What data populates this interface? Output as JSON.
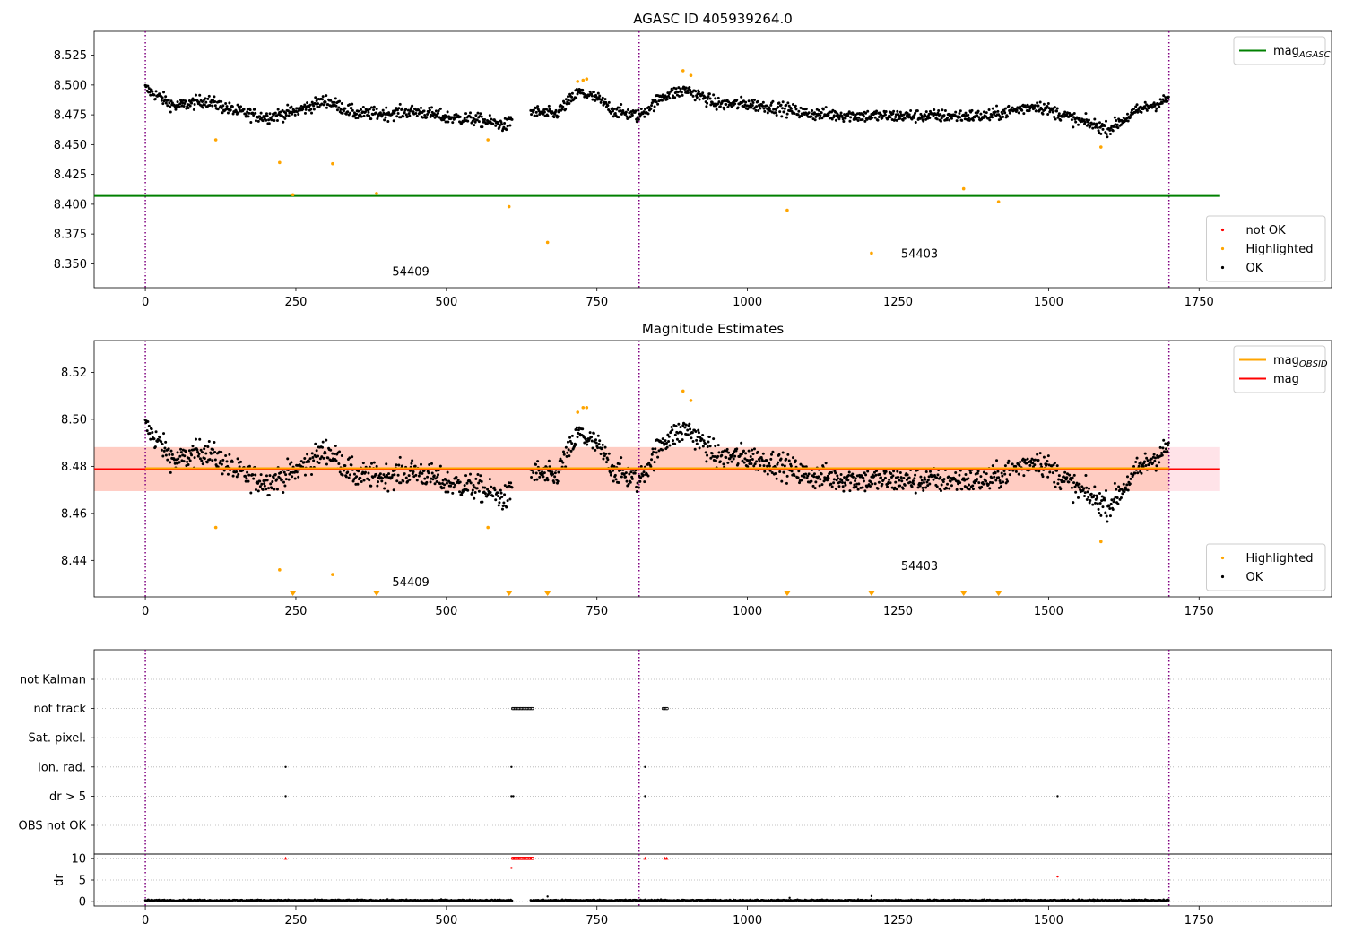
{
  "figure": {
    "title_top": "AGASC ID 405939264.0",
    "title_mid": "Magnitude Estimates"
  },
  "colors": {
    "ok": "#000000",
    "highlighted": "#ffa500",
    "not_ok": "#ff0000",
    "agasc_line": "#008000",
    "obsid_mag": "#ffa500",
    "mag_line": "#ff0000",
    "band_outer": "#ffc0cb",
    "band_inner": "#ffa07a",
    "obsid_boundary": "#800080",
    "grid": "#b0b0b0"
  },
  "chart_data": [
    {
      "type": "scatter",
      "title": "AGASC ID 405939264.0",
      "xlim": [
        -85,
        1970
      ],
      "ylim": [
        8.33,
        8.545
      ],
      "xticks": [
        0,
        250,
        500,
        750,
        1000,
        1250,
        1500,
        1750
      ],
      "yticks": [
        8.35,
        8.375,
        8.4,
        8.425,
        8.45,
        8.475,
        8.5,
        8.525
      ],
      "ytick_decimals": 3,
      "hlines": [
        {
          "name": "mag_AGASC",
          "y": 8.407,
          "x": [
            -85,
            1785
          ],
          "color": "#008000"
        }
      ],
      "vlines": [
        0,
        820,
        1700
      ],
      "annotations": [
        {
          "text": "54409",
          "x": 410,
          "y": 8.34
        },
        {
          "text": "54403",
          "x": 1255,
          "y": 8.355
        }
      ],
      "legends": [
        {
          "loc": "upper right",
          "entries": [
            {
              "label": "mag",
              "sub": "AGASC",
              "kind": "line",
              "color": "#008000"
            }
          ]
        },
        {
          "loc": "lower right",
          "entries": [
            {
              "label": "not OK",
              "kind": "marker",
              "color": "#ff0000"
            },
            {
              "label": "Highlighted",
              "kind": "marker",
              "color": "#ffa500"
            },
            {
              "label": "OK",
              "kind": "marker",
              "color": "#000000"
            }
          ]
        }
      ],
      "series": [
        {
          "name": "OK",
          "segments": [
            {
              "x0": 0,
              "x1": 610,
              "points": [
                [
                  0,
                  8.497
                ],
                [
                  50,
                  8.482
                ],
                [
                  100,
                  8.487
                ],
                [
                  150,
                  8.478
                ],
                [
                  200,
                  8.473
                ],
                [
                  250,
                  8.478
                ],
                [
                  300,
                  8.487
                ],
                [
                  350,
                  8.476
                ],
                [
                  400,
                  8.476
                ],
                [
                  450,
                  8.478
                ],
                [
                  500,
                  8.473
                ],
                [
                  550,
                  8.471
                ],
                [
                  600,
                  8.466
                ],
                [
                  610,
                  8.472
                ]
              ],
              "jitter": 0.007
            },
            {
              "x0": 640,
              "x1": 1700,
              "points": [
                [
                  640,
                  8.478
                ],
                [
                  680,
                  8.475
                ],
                [
                  720,
                  8.494
                ],
                [
                  750,
                  8.489
                ],
                [
                  780,
                  8.478
                ],
                [
                  820,
                  8.474
                ],
                [
                  860,
                  8.491
                ],
                [
                  900,
                  8.496
                ],
                [
                  950,
                  8.484
                ],
                [
                  1000,
                  8.484
                ],
                [
                  1050,
                  8.481
                ],
                [
                  1100,
                  8.476
                ],
                [
                  1200,
                  8.474
                ],
                [
                  1300,
                  8.474
                ],
                [
                  1400,
                  8.474
                ],
                [
                  1480,
                  8.483
                ],
                [
                  1550,
                  8.47
                ],
                [
                  1600,
                  8.463
                ],
                [
                  1650,
                  8.479
                ],
                [
                  1700,
                  8.488
                ]
              ],
              "jitter": 0.007
            }
          ]
        },
        {
          "name": "Highlighted",
          "points": [
            [
              117,
              8.454
            ],
            [
              223,
              8.435
            ],
            [
              245,
              8.408
            ],
            [
              311,
              8.434
            ],
            [
              384,
              8.409
            ],
            [
              569,
              8.454
            ],
            [
              604,
              8.398
            ],
            [
              668,
              8.368
            ],
            [
              718,
              8.503
            ],
            [
              727,
              8.504
            ],
            [
              733,
              8.505
            ],
            [
              893,
              8.512
            ],
            [
              906,
              8.508
            ],
            [
              1066,
              8.395
            ],
            [
              1206,
              8.359
            ],
            [
              1359,
              8.413
            ],
            [
              1417,
              8.402
            ],
            [
              1587,
              8.448
            ]
          ]
        }
      ]
    },
    {
      "type": "scatter",
      "title": "Magnitude Estimates",
      "xlim": [
        -85,
        1970
      ],
      "ylim": [
        8.4245,
        8.5335
      ],
      "xticks": [
        0,
        250,
        500,
        750,
        1000,
        1250,
        1500,
        1750
      ],
      "yticks": [
        8.44,
        8.46,
        8.48,
        8.5,
        8.52
      ],
      "ytick_decimals": 2,
      "band_outer": [
        8.4695,
        8.4882
      ],
      "band_inner_x": [
        -85,
        1700
      ],
      "mag": 8.4788,
      "mag_obsid": 8.4792,
      "vlines": [
        0,
        820,
        1700
      ],
      "annotations": [
        {
          "text": "54409",
          "x": 410,
          "y": 8.429
        },
        {
          "text": "54403",
          "x": 1255,
          "y": 8.436
        }
      ],
      "legends": [
        {
          "loc": "upper right",
          "entries": [
            {
              "label": "mag",
              "sub": "OBSID",
              "kind": "line",
              "color": "#ffa500"
            },
            {
              "label": "mag",
              "kind": "line",
              "color": "#ff0000"
            }
          ]
        },
        {
          "loc": "lower right",
          "entries": [
            {
              "label": "Highlighted",
              "kind": "marker",
              "color": "#ffa500"
            },
            {
              "label": "OK",
              "kind": "marker",
              "color": "#000000"
            }
          ]
        }
      ],
      "series": [
        {
          "name": "Highlighted",
          "points": [
            [
              117,
              8.454
            ],
            [
              223,
              8.436
            ],
            [
              311,
              8.434
            ],
            [
              569,
              8.454
            ],
            [
              718,
              8.503
            ],
            [
              727,
              8.505
            ],
            [
              733,
              8.505
            ],
            [
              893,
              8.512
            ],
            [
              906,
              8.508
            ],
            [
              1587,
              8.448
            ]
          ]
        },
        {
          "name": "Highlighted (below range)",
          "x": [
            245,
            384,
            604,
            668,
            1066,
            1206,
            1359,
            1417
          ]
        }
      ]
    },
    {
      "type": "scatter",
      "title": "",
      "xlim": [
        -85,
        1970
      ],
      "xticks": [
        0,
        250,
        500,
        750,
        1000,
        1250,
        1500,
        1750
      ],
      "categories": [
        "not Kalman",
        "not track",
        "Sat. pixel.",
        "Ion. rad.",
        "dr > 5",
        "OBS not OK"
      ],
      "flags": {
        "not track": [
          [
            610,
            645
          ],
          [
            860,
            868
          ]
        ],
        "Ion. rad.": [
          233,
          608,
          830
        ],
        "dr > 5": [
          233,
          608,
          611,
          830,
          1515
        ]
      },
      "vlines": [
        0,
        820,
        1700
      ]
    },
    {
      "type": "scatter",
      "title": "",
      "ylabel": "dr",
      "xlim": [
        -85,
        1970
      ],
      "ylim": [
        -1,
        11
      ],
      "xticks": [
        0,
        250,
        500,
        750,
        1000,
        1250,
        1500,
        1750
      ],
      "yticks": [
        0,
        5,
        10
      ],
      "xticklabels": [
        "0",
        "250",
        "500",
        "750",
        "1000",
        "1250",
        "1500",
        "1750"
      ],
      "baseline": 0.3,
      "outliers_red": [
        [
          233,
          10
        ],
        [
          608,
          7.8
        ],
        [
          612,
          10
        ],
        [
          620,
          10
        ],
        [
          630,
          10
        ],
        [
          640,
          10
        ],
        [
          830,
          10
        ],
        [
          863,
          10
        ],
        [
          866,
          10
        ],
        [
          1515,
          5.8
        ]
      ],
      "outliers_black": [
        [
          668,
          1.2
        ],
        [
          1206,
          1.3
        ],
        [
          1070,
          0.9
        ]
      ],
      "vlines": [
        0,
        820,
        1700
      ]
    }
  ]
}
